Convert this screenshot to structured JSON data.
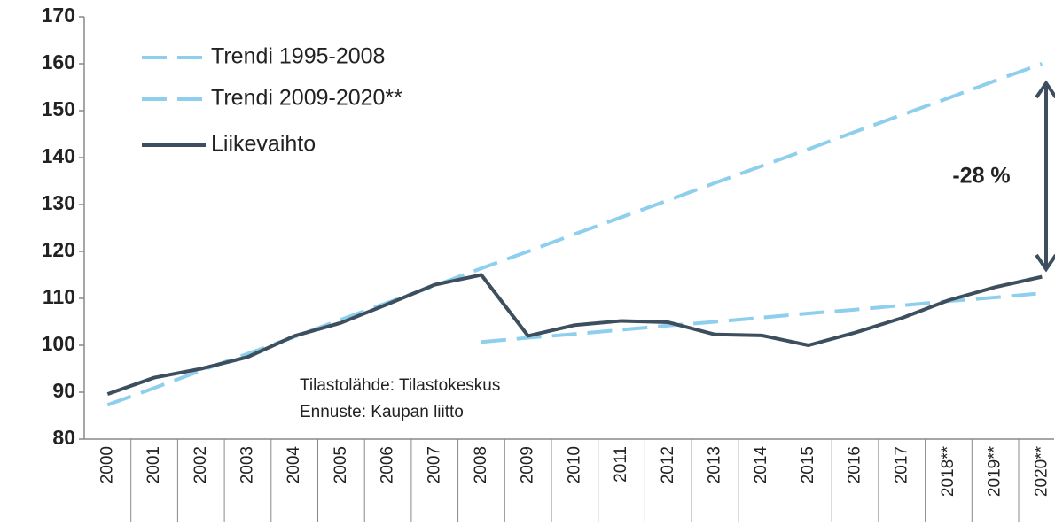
{
  "chart_data": {
    "type": "line",
    "categories": [
      "2000",
      "2001",
      "2002",
      "2003",
      "2004",
      "2005",
      "2006",
      "2007",
      "2008",
      "2009",
      "2010",
      "2011",
      "2012",
      "2013",
      "2014",
      "2015",
      "2016",
      "2017",
      "2018**",
      "2019**",
      "2020**"
    ],
    "series": [
      {
        "name": "Trendi 1995-2008",
        "color": "#8ecfed",
        "style": "dashed",
        "values": [
          87.3,
          90.9,
          94.6,
          98.2,
          101.8,
          105.5,
          109.1,
          112.7,
          116.4,
          120.0,
          123.7,
          127.3,
          130.9,
          134.6,
          138.2,
          141.8,
          145.5,
          149.1,
          152.7,
          156.4,
          160.0
        ]
      },
      {
        "name": "Trendi 2009-2020**",
        "color": "#8ecfed",
        "style": "dashed",
        "values": [
          null,
          null,
          null,
          null,
          null,
          null,
          null,
          null,
          100.7,
          101.6,
          102.4,
          103.3,
          104.2,
          105.0,
          105.9,
          106.8,
          107.6,
          108.5,
          109.4,
          110.2,
          111.1
        ]
      },
      {
        "name": "Liikevaihto",
        "color": "#3d4f5e",
        "style": "solid",
        "values": [
          89.6,
          93.1,
          95.0,
          97.5,
          102.0,
          104.8,
          108.8,
          112.9,
          115.0,
          102.0,
          104.3,
          105.2,
          104.9,
          102.3,
          102.1,
          100.0,
          102.7,
          105.8,
          109.6,
          112.4,
          114.6
        ]
      }
    ],
    "ylim": [
      80,
      170
    ],
    "yticks": [
      80,
      90,
      100,
      110,
      120,
      130,
      140,
      150,
      160,
      170
    ],
    "legend": "upper-left",
    "annotations": [
      "-28 %",
      "Tilastolähde: Tilastokeskus",
      "Ennuste: Kaupan liitto"
    ]
  }
}
